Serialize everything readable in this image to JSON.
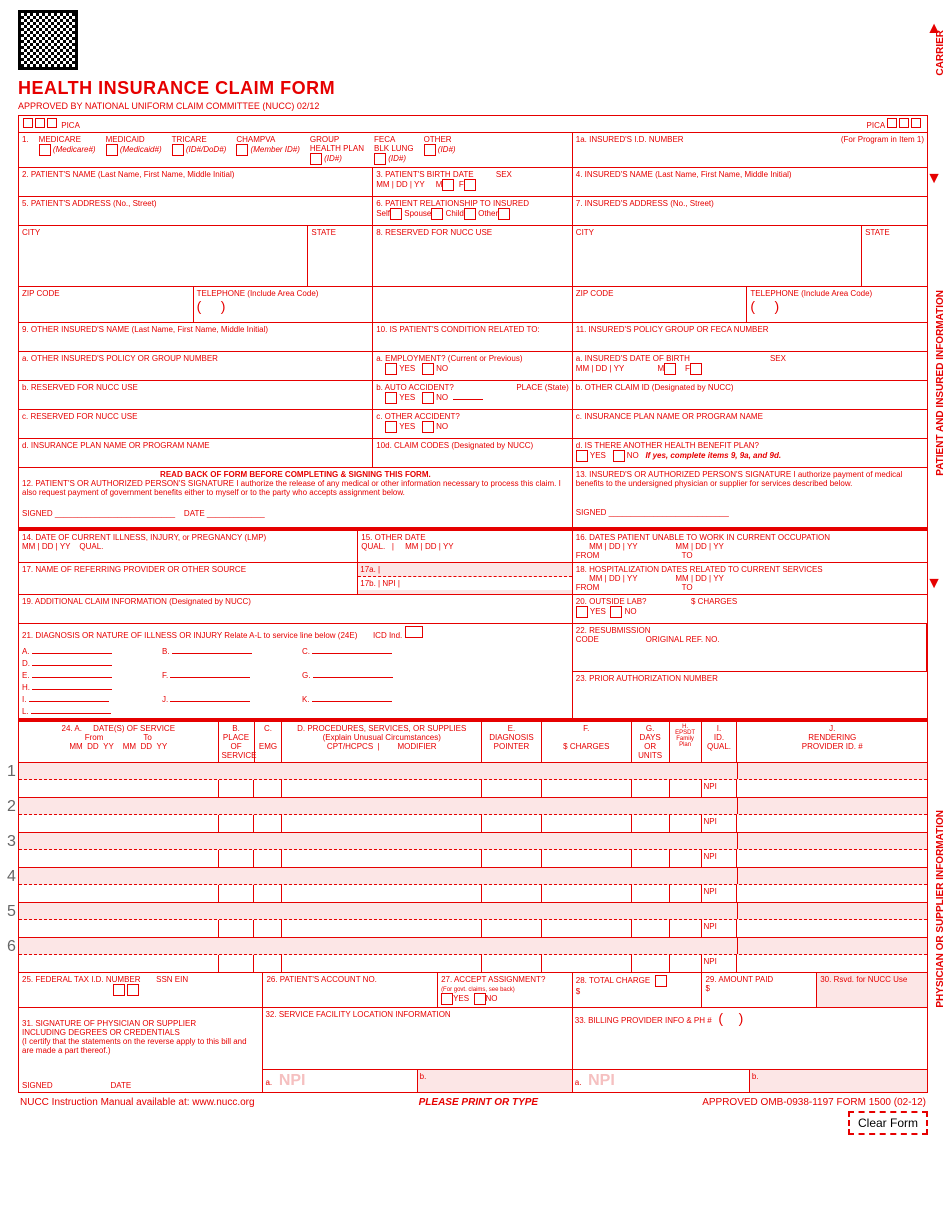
{
  "header": {
    "title": "HEALTH INSURANCE CLAIM FORM",
    "subtitle": "APPROVED BY NATIONAL UNIFORM CLAIM COMMITTEE (NUCC) 02/12",
    "pica": "PICA"
  },
  "vertical": {
    "carrier": "CARRIER",
    "patient": "PATIENT AND INSURED INFORMATION",
    "physician": "PHYSICIAN OR SUPPLIER INFORMATION"
  },
  "box1": {
    "num": "1.",
    "medicare": "MEDICARE",
    "medicare_sub": "(Medicare#)",
    "medicaid": "MEDICAID",
    "medicaid_sub": "(Medicaid#)",
    "tricare": "TRICARE",
    "tricare_sub": "(ID#/DoD#)",
    "champva": "CHAMPVA",
    "champva_sub": "(Member ID#)",
    "group": "GROUP\nHEALTH PLAN",
    "group_sub": "(ID#)",
    "feca": "FECA\nBLK LUNG",
    "feca_sub": "(ID#)",
    "other": "OTHER",
    "other_sub": "(ID#)"
  },
  "box1a": {
    "label": "1a. INSURED'S I.D. NUMBER",
    "note": "(For Program in Item 1)"
  },
  "box2": {
    "label": "2. PATIENT'S NAME (Last Name, First Name, Middle Initial)"
  },
  "box3": {
    "label": "3. PATIENT'S BIRTH DATE",
    "mm": "MM",
    "dd": "DD",
    "yy": "YY",
    "sex": "SEX",
    "m": "M",
    "f": "F"
  },
  "box4": {
    "label": "4. INSURED'S NAME (Last Name, First Name, Middle Initial)"
  },
  "box5": {
    "label": "5. PATIENT'S ADDRESS (No., Street)"
  },
  "box6": {
    "label": "6. PATIENT RELATIONSHIP TO INSURED",
    "self": "Self",
    "spouse": "Spouse",
    "child": "Child",
    "other": "Other"
  },
  "box7": {
    "label": "7. INSURED'S ADDRESS (No., Street)"
  },
  "city": "CITY",
  "state": "STATE",
  "zip": "ZIP CODE",
  "phone": "TELEPHONE (Include Area Code)",
  "box8": "8. RESERVED FOR NUCC USE",
  "box9": {
    "main": "9. OTHER INSURED'S NAME (Last Name, First Name, Middle Initial)",
    "a": "a. OTHER INSURED'S POLICY OR GROUP NUMBER",
    "b": "b. RESERVED FOR NUCC USE",
    "c": "c. RESERVED FOR NUCC USE",
    "d": "d. INSURANCE PLAN NAME OR PROGRAM NAME"
  },
  "box10": {
    "main": "10. IS PATIENT'S CONDITION RELATED TO:",
    "a": "a. EMPLOYMENT? (Current or Previous)",
    "b": "b. AUTO ACCIDENT?",
    "c": "c. OTHER ACCIDENT?",
    "d": "10d. CLAIM CODES (Designated by NUCC)",
    "yes": "YES",
    "no": "NO",
    "place": "PLACE (State)"
  },
  "box11": {
    "main": "11. INSURED'S POLICY GROUP OR FECA NUMBER",
    "a": "a. INSURED'S DATE OF BIRTH",
    "b": "b. OTHER CLAIM ID (Designated by NUCC)",
    "c": "c. INSURANCE PLAN NAME OR PROGRAM NAME",
    "d": "d. IS THERE ANOTHER HEALTH BENEFIT PLAN?",
    "d_note": "If yes, complete items 9, 9a, and 9d."
  },
  "box12": {
    "heading": "READ BACK OF FORM BEFORE COMPLETING & SIGNING THIS FORM.",
    "text": "12. PATIENT'S OR AUTHORIZED PERSON'S SIGNATURE I authorize the release of any medical or other information necessary to process this claim. I also request payment of government benefits either to myself or to the party who accepts assignment below.",
    "signed": "SIGNED",
    "date": "DATE"
  },
  "box13": {
    "text": "13. INSURED'S OR AUTHORIZED PERSON'S SIGNATURE I authorize payment of medical benefits to the undersigned physician or supplier for services described below.",
    "signed": "SIGNED"
  },
  "box14": {
    "label": "14. DATE OF CURRENT ILLNESS, INJURY, or PREGNANCY (LMP)",
    "qual": "QUAL."
  },
  "box15": {
    "label": "15. OTHER DATE",
    "qual": "QUAL."
  },
  "box16": {
    "label": "16. DATES PATIENT UNABLE TO WORK IN CURRENT OCCUPATION",
    "from": "FROM",
    "to": "TO"
  },
  "box17": {
    "label": "17. NAME OF REFERRING PROVIDER OR OTHER SOURCE",
    "a": "17a.",
    "b": "17b.",
    "npi": "NPI"
  },
  "box18": {
    "label": "18. HOSPITALIZATION DATES RELATED TO CURRENT SERVICES",
    "from": "FROM",
    "to": "TO"
  },
  "box19": {
    "label": "19. ADDITIONAL CLAIM INFORMATION (Designated by NUCC)"
  },
  "box20": {
    "label": "20. OUTSIDE LAB?",
    "charges": "$ CHARGES"
  },
  "box21": {
    "label": "21. DIAGNOSIS OR NATURE OF ILLNESS OR INJURY  Relate A-L to service line below (24E)",
    "icd": "ICD Ind.",
    "letters": [
      "A.",
      "B.",
      "C.",
      "D.",
      "E.",
      "F.",
      "G.",
      "H.",
      "I.",
      "J.",
      "K.",
      "L."
    ]
  },
  "box22": {
    "label": "22. RESUBMISSION",
    "code": "CODE",
    "orig": "ORIGINAL REF. NO."
  },
  "box23": {
    "label": "23. PRIOR AUTHORIZATION NUMBER"
  },
  "box24": {
    "a": "24. A.",
    "dates": "DATE(S) OF SERVICE",
    "from": "From",
    "to": "To",
    "mm": "MM",
    "dd": "DD",
    "yy": "YY",
    "b": "B.",
    "b_label": "PLACE OF\nSERVICE",
    "c": "C.",
    "c_label": "EMG",
    "d": "D. PROCEDURES, SERVICES, OR SUPPLIES",
    "d_sub": "(Explain Unusual Circumstances)",
    "cpt": "CPT/HCPCS",
    "mod": "MODIFIER",
    "e": "E.",
    "e_label": "DIAGNOSIS\nPOINTER",
    "f": "F.",
    "f_label": "$ CHARGES",
    "g": "G.",
    "g_label": "DAYS\nOR\nUNITS",
    "h": "H.",
    "h_label": "EPSDT\nFamily\nPlan",
    "i": "I.",
    "i_label": "ID.\nQUAL.",
    "j": "J.",
    "j_label": "RENDERING\nPROVIDER ID. #",
    "npi": "NPI"
  },
  "box25": {
    "label": "25. FEDERAL TAX I.D. NUMBER",
    "ssn": "SSN",
    "ein": "EIN"
  },
  "box26": {
    "label": "26. PATIENT'S ACCOUNT NO."
  },
  "box27": {
    "label": "27. ACCEPT ASSIGNMENT?",
    "note": "(For govt. claims, see back)"
  },
  "box28": {
    "label": "28. TOTAL CHARGE",
    "dollar": "$"
  },
  "box29": {
    "label": "29. AMOUNT PAID",
    "dollar": "$"
  },
  "box30": {
    "label": "30. Rsvd. for NUCC Use"
  },
  "box31": {
    "label": "31. SIGNATURE OF PHYSICIAN OR SUPPLIER\nINCLUDING DEGREES OR CREDENTIALS",
    "note": "(I certify that the statements on the reverse apply to this bill and are made a part thereof.)",
    "signed": "SIGNED",
    "date": "DATE"
  },
  "box32": {
    "label": "32. SERVICE FACILITY LOCATION INFORMATION",
    "a": "a.",
    "b": "b.",
    "npi": "NPI"
  },
  "box33": {
    "label": "33. BILLING PROVIDER INFO & PH #",
    "a": "a.",
    "b": "b.",
    "npi": "NPI"
  },
  "footer": {
    "left": "NUCC Instruction Manual available at: www.nucc.org",
    "center": "PLEASE PRINT OR TYPE",
    "right": "APPROVED OMB-0938-1197 FORM 1500 (02-12)",
    "clear": "Clear Form"
  },
  "rows": [
    "1",
    "2",
    "3",
    "4",
    "5",
    "6"
  ]
}
